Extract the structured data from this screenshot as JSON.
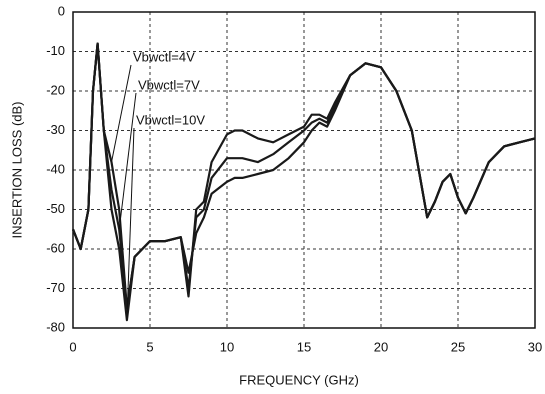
{
  "chart_data": {
    "type": "line",
    "x_label": "FREQUENCY (GHz)",
    "y_label": "INSERTION LOSS (dB)",
    "x": [
      0,
      0.5,
      1,
      1.3,
      1.6,
      2,
      2.5,
      3,
      3.5,
      4,
      4.5,
      5,
      6,
      7,
      7.5,
      8,
      8.5,
      9,
      10,
      10.5,
      11,
      12,
      13,
      14,
      15,
      15.5,
      16,
      16.5,
      17,
      18,
      19,
      20,
      21,
      22,
      23,
      23.5,
      24,
      24.5,
      25,
      25.5,
      26,
      27,
      28,
      29,
      30
    ],
    "series": [
      {
        "name": "Vbwctl=4V",
        "color": "#1a1a1a",
        "values": [
          -55,
          -60,
          -50,
          -20,
          -8,
          -30,
          -38,
          -50,
          -75,
          -62,
          -60,
          -58,
          -58,
          -57,
          -72,
          -50,
          -48,
          -38,
          -31,
          -30,
          -30,
          -32,
          -33,
          -31,
          -29,
          -26,
          -26,
          -27,
          -23,
          -16,
          -13,
          -14,
          -20,
          -30,
          -52,
          -48,
          -43,
          -41,
          -47,
          -51,
          -47,
          -38,
          -34,
          -33,
          -32
        ]
      },
      {
        "name": "Vbwctl=7V",
        "color": "#1a1a1a",
        "values": [
          -55,
          -60,
          -50,
          -20,
          -8,
          -30,
          -45,
          -55,
          -75,
          -62,
          -60,
          -58,
          -58,
          -57,
          -70,
          -52,
          -50,
          -42,
          -37,
          -37,
          -37,
          -38,
          -36,
          -33,
          -30,
          -28,
          -27,
          -28,
          -24,
          -16,
          -13,
          -14,
          -20,
          -30,
          -52,
          -48,
          -43,
          -41,
          -47,
          -51,
          -47,
          -38,
          -34,
          -33,
          -32
        ]
      },
      {
        "name": "Vbwctl=10V",
        "color": "#1a1a1a",
        "values": [
          -55,
          -60,
          -50,
          -20,
          -8,
          -30,
          -50,
          -60,
          -78,
          -62,
          -60,
          -58,
          -58,
          -57,
          -66,
          -56,
          -52,
          -46,
          -43,
          -42,
          -42,
          -41,
          -40,
          -37,
          -33,
          -30,
          -28,
          -29,
          -25,
          -16,
          -13,
          -14,
          -20,
          -30,
          -52,
          -48,
          -43,
          -41,
          -47,
          -51,
          -47,
          -38,
          -34,
          -33,
          -32
        ]
      }
    ],
    "xlim": [
      0,
      30
    ],
    "xticks": [
      0,
      5,
      10,
      15,
      20,
      25,
      30
    ],
    "ylim": [
      -80,
      0
    ],
    "yticks": [
      0,
      -10,
      -20,
      -30,
      -40,
      -50,
      -60,
      -70,
      -80
    ],
    "grid": true
  }
}
